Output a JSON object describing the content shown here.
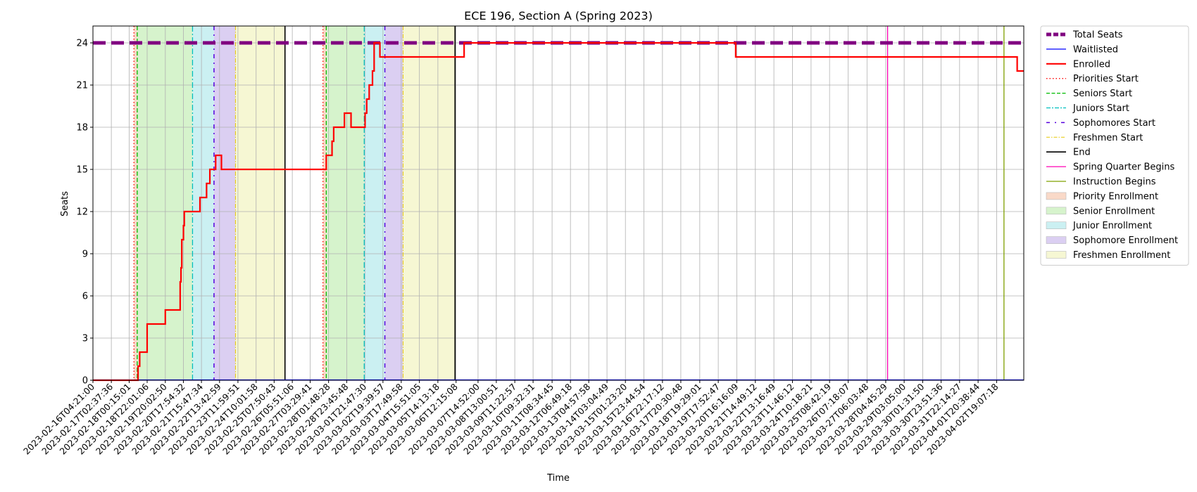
{
  "chart_data": {
    "type": "line",
    "title": "ECE 196, Section A (Spring 2023)",
    "xlabel": "Time",
    "ylabel": "Seats",
    "ylim": [
      0,
      25.2
    ],
    "yticks": [
      0,
      3,
      6,
      9,
      12,
      15,
      18,
      21,
      24
    ],
    "xlim": [
      "2023-02-16T04:21:00",
      "2023-04-04T04:00:00"
    ],
    "xtick_labels": [
      "2023-02-16T04:21:00",
      "2023-02-17T02:37:36",
      "2023-02-18T00:15:01",
      "2023-02-18T22:01:06",
      "2023-02-19T20:02:50",
      "2023-02-20T17:54:32",
      "2023-02-21T15:47:34",
      "2023-02-22T13:42:59",
      "2023-02-23T11:59:51",
      "2023-02-24T10:01:58",
      "2023-02-25T07:50:43",
      "2023-02-26T05:51:06",
      "2023-02-27T03:29:41",
      "2023-02-28T01:48:28",
      "2023-02-28T23:45:48",
      "2023-03-01T21:47:30",
      "2023-03-02T19:39:57",
      "2023-03-03T17:49:58",
      "2023-03-04T15:51:05",
      "2023-03-05T14:13:18",
      "2023-03-06T12:15:08",
      "2023-03-07T14:52:00",
      "2023-03-08T13:00:51",
      "2023-03-09T11:22:57",
      "2023-03-10T09:32:31",
      "2023-03-11T08:34:45",
      "2023-03-12T06:49:18",
      "2023-03-13T04:57:58",
      "2023-03-14T03:04:49",
      "2023-03-15T01:23:20",
      "2023-03-15T23:44:54",
      "2023-03-16T22:17:12",
      "2023-03-17T20:30:48",
      "2023-03-18T19:29:01",
      "2023-03-19T17:52:47",
      "2023-03-20T16:16:09",
      "2023-03-21T14:49:12",
      "2023-03-22T13:16:49",
      "2023-03-23T11:46:12",
      "2023-03-24T10:18:21",
      "2023-03-25T08:42:19",
      "2023-03-26T07:18:07",
      "2023-03-27T06:03:48",
      "2023-03-28T04:45:29",
      "2023-03-29T03:05:00",
      "2023-03-30T01:31:50",
      "2023-03-30T23:51:36",
      "2023-03-31T22:14:27",
      "2023-04-01T20:38:44",
      "2023-04-02T19:07:18"
    ],
    "grid": true,
    "legend_position": "outside upper right",
    "colors": {
      "total": "#800080",
      "waitlisted": "#0000ff",
      "enrolled": "#ff0000",
      "priority": "#ff0000",
      "seniors": "#00bb00",
      "juniors": "#00bfbf",
      "sophomores": "#5500dd",
      "freshmen": "#e6c800",
      "end": "#000000",
      "quarter": "#ff00b4",
      "instruction": "#7fa000",
      "priority_fill": "#f9d9c8",
      "senior_fill": "#d6f3cc",
      "junior_fill": "#cbf0f2",
      "sophomore_fill": "#dbcff2",
      "freshmen_fill": "#f6f7d3"
    },
    "series": [
      {
        "name": "Total Seats",
        "style": "dashed-thick",
        "points": [
          [
            "2023-02-16T04:21:00",
            24
          ],
          [
            "2023-04-04T04:00:00",
            24
          ]
        ]
      },
      {
        "name": "Waitlisted",
        "points": [
          [
            "2023-02-16T04:21:00",
            0
          ],
          [
            "2023-04-04T04:00:00",
            0
          ]
        ]
      },
      {
        "name": "Enrolled",
        "step": "post",
        "points": [
          [
            "2023-02-16T04:21:00",
            0
          ],
          [
            "2023-02-18T11:00:00",
            1
          ],
          [
            "2023-02-18T13:00:00",
            2
          ],
          [
            "2023-02-18T22:00:00",
            4
          ],
          [
            "2023-02-19T20:00:00",
            5
          ],
          [
            "2023-02-20T14:00:00",
            7
          ],
          [
            "2023-02-20T15:00:00",
            8
          ],
          [
            "2023-02-20T16:00:00",
            10
          ],
          [
            "2023-02-20T18:00:00",
            11
          ],
          [
            "2023-02-20T19:00:00",
            12
          ],
          [
            "2023-02-21T14:00:00",
            13
          ],
          [
            "2023-02-21T22:00:00",
            14
          ],
          [
            "2023-02-22T02:00:00",
            15
          ],
          [
            "2023-02-22T09:00:00",
            16
          ],
          [
            "2023-02-22T16:00:00",
            15
          ],
          [
            "2023-02-27T23:00:00",
            16
          ],
          [
            "2023-02-28T06:00:00",
            17
          ],
          [
            "2023-02-28T08:00:00",
            18
          ],
          [
            "2023-02-28T21:00:00",
            19
          ],
          [
            "2023-03-01T05:00:00",
            18
          ],
          [
            "2023-03-01T22:00:00",
            19
          ],
          [
            "2023-03-02T00:00:00",
            20
          ],
          [
            "2023-03-02T03:00:00",
            21
          ],
          [
            "2023-03-02T07:00:00",
            22
          ],
          [
            "2023-03-02T09:00:00",
            24
          ],
          [
            "2023-03-02T16:00:00",
            23
          ],
          [
            "2023-03-06T22:00:00",
            24
          ],
          [
            "2023-03-20T15:00:00",
            23
          ],
          [
            "2023-04-03T20:00:00",
            22
          ],
          [
            "2023-04-04T04:00:00",
            22
          ]
        ]
      }
    ],
    "vlines": [
      {
        "name": "Priorities Start",
        "style": "dotted",
        "times": [
          "2023-02-18T06:00:00",
          "2023-02-27T19:00:00"
        ]
      },
      {
        "name": "Seniors Start",
        "style": "dashed",
        "times": [
          "2023-02-18T10:00:00",
          "2023-02-27T23:00:00"
        ]
      },
      {
        "name": "Juniors Start",
        "style": "dashdot",
        "times": [
          "2023-02-21T05:00:00",
          "2023-03-01T21:00:00"
        ]
      },
      {
        "name": "Sophomores Start",
        "style": "loosedashdot",
        "times": [
          "2023-02-22T07:00:00",
          "2023-03-02T22:00:00"
        ]
      },
      {
        "name": "Freshmen Start",
        "style": "dashdot-thin",
        "times": [
          "2023-02-23T09:00:00",
          "2023-03-03T20:00:00"
        ]
      },
      {
        "name": "End",
        "style": "solid",
        "times": [
          "2023-02-25T21:00:00",
          "2023-03-06T11:00:00"
        ]
      },
      {
        "name": "Spring Quarter Begins",
        "style": "solid",
        "times": [
          "2023-03-28T07:00:00"
        ]
      },
      {
        "name": "Instruction Begins",
        "style": "solid",
        "times": [
          "2023-04-03T04:00:00"
        ]
      }
    ],
    "spans": [
      {
        "name": "Priority Enrollment",
        "ranges": [
          [
            "2023-02-18T06:00:00",
            "2023-02-18T10:00:00"
          ],
          [
            "2023-02-27T19:00:00",
            "2023-02-27T23:00:00"
          ]
        ]
      },
      {
        "name": "Senior Enrollment",
        "ranges": [
          [
            "2023-02-18T10:00:00",
            "2023-02-21T05:00:00"
          ],
          [
            "2023-02-27T23:00:00",
            "2023-03-01T21:00:00"
          ]
        ]
      },
      {
        "name": "Junior Enrollment",
        "ranges": [
          [
            "2023-02-21T05:00:00",
            "2023-02-22T07:00:00"
          ],
          [
            "2023-03-01T21:00:00",
            "2023-03-02T22:00:00"
          ]
        ]
      },
      {
        "name": "Sophomore Enrollment",
        "ranges": [
          [
            "2023-02-22T07:00:00",
            "2023-02-23T09:00:00"
          ],
          [
            "2023-03-02T22:00:00",
            "2023-03-03T20:00:00"
          ]
        ]
      },
      {
        "name": "Freshmen Enrollment",
        "ranges": [
          [
            "2023-02-23T09:00:00",
            "2023-02-25T21:00:00"
          ],
          [
            "2023-03-03T20:00:00",
            "2023-03-06T11:00:00"
          ]
        ]
      }
    ],
    "legend": [
      {
        "label": "Total Seats",
        "kind": "line",
        "key": "total"
      },
      {
        "label": "Waitlisted",
        "kind": "line",
        "key": "waitlisted"
      },
      {
        "label": "Enrolled",
        "kind": "line",
        "key": "enrolled"
      },
      {
        "label": "Priorities Start",
        "kind": "line",
        "key": "priority"
      },
      {
        "label": "Seniors Start",
        "kind": "line",
        "key": "seniors"
      },
      {
        "label": "Juniors Start",
        "kind": "line",
        "key": "juniors"
      },
      {
        "label": "Sophomores Start",
        "kind": "line",
        "key": "sophomores"
      },
      {
        "label": "Freshmen Start",
        "kind": "line",
        "key": "freshmen"
      },
      {
        "label": "End",
        "kind": "line",
        "key": "end"
      },
      {
        "label": "Spring Quarter Begins",
        "kind": "line",
        "key": "quarter"
      },
      {
        "label": "Instruction Begins",
        "kind": "line",
        "key": "instruction"
      },
      {
        "label": "Priority Enrollment",
        "kind": "patch",
        "key": "priority_fill"
      },
      {
        "label": "Senior Enrollment",
        "kind": "patch",
        "key": "senior_fill"
      },
      {
        "label": "Junior Enrollment",
        "kind": "patch",
        "key": "junior_fill"
      },
      {
        "label": "Sophomore Enrollment",
        "kind": "patch",
        "key": "sophomore_fill"
      },
      {
        "label": "Freshmen Enrollment",
        "kind": "patch",
        "key": "freshmen_fill"
      }
    ]
  }
}
